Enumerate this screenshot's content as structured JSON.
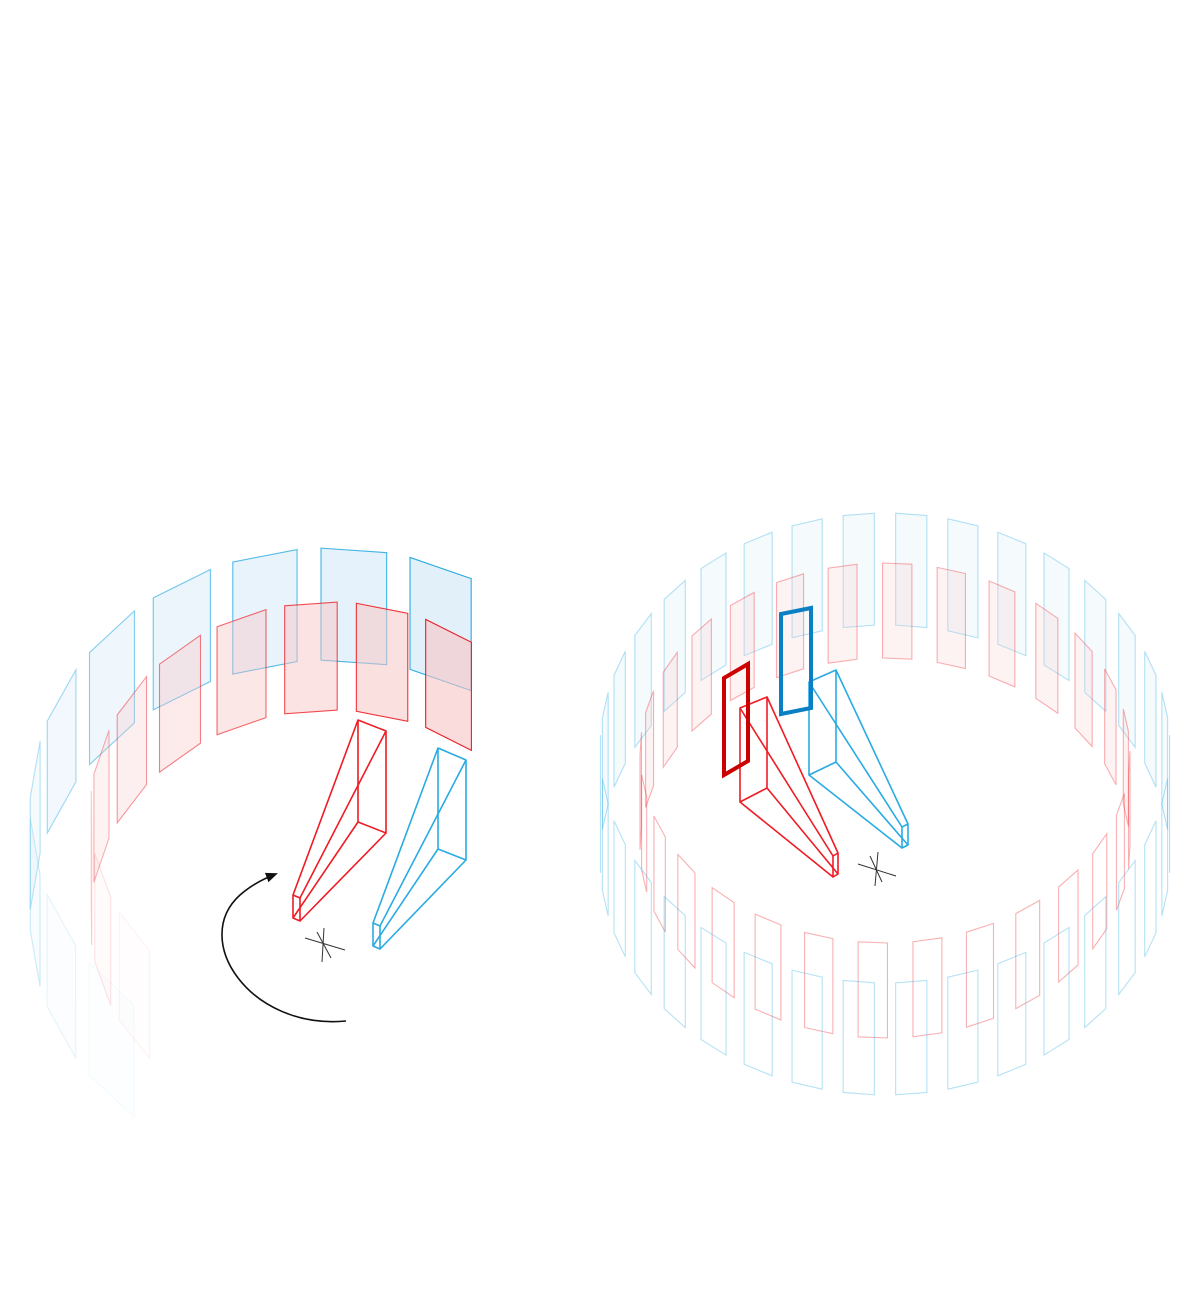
{
  "colors": {
    "red": "#ee1c24",
    "red_bold": "#cc0000",
    "blue": "#29abe2",
    "blue_bold": "#0a7fc4",
    "red_fill": "#f8c4c4",
    "blue_fill": "#cfe6f7",
    "arrow": "#111111",
    "axis": "#333333"
  },
  "figures": [
    {
      "id": "left",
      "description_visible": false,
      "elements": [
        "red-wedge",
        "blue-wedge",
        "rotation-arrow",
        "center-marker",
        "partial-ring"
      ]
    },
    {
      "id": "right",
      "description_visible": false,
      "elements": [
        "red-wedge",
        "blue-wedge",
        "bold-red-panel",
        "bold-blue-panel",
        "center-marker",
        "full-ring"
      ]
    }
  ]
}
